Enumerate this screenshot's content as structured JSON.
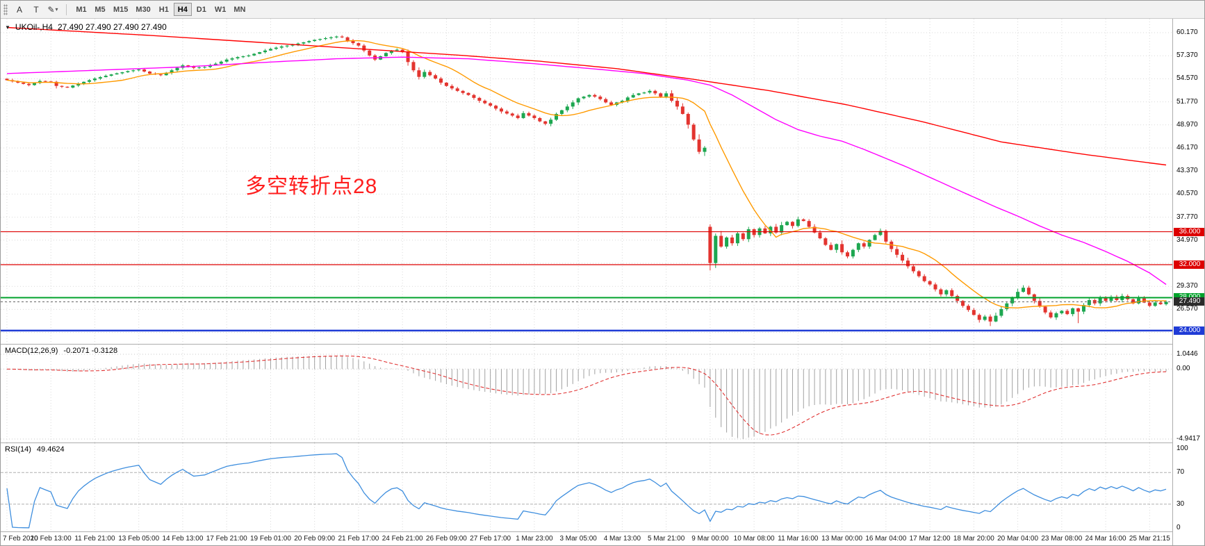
{
  "toolbar": {
    "tools": [
      {
        "name": "window-grip",
        "glyph": ""
      },
      {
        "name": "arrow-tool",
        "glyph": "A"
      },
      {
        "name": "text-tool",
        "glyph": "T"
      },
      {
        "name": "draw-tool",
        "glyph": "✎",
        "caret": "▾"
      }
    ],
    "timeframes": [
      "M1",
      "M5",
      "M15",
      "M30",
      "H1",
      "H4",
      "D1",
      "W1",
      "MN"
    ],
    "active_timeframe": "H4"
  },
  "chart_title": {
    "collapse_arrow": "▼",
    "symbol_period": "UKOil-,H4",
    "ohlc_readout": "27.490 27.490 27.490 27.490"
  },
  "annotation": {
    "text": "多空转折点28",
    "color": "#FF1E1E"
  },
  "colors": {
    "grid": "#D9D9D9",
    "candle_up": "#1DA750",
    "candle_down": "#E3342F",
    "panel_border": "#ADADAD"
  },
  "chart_data": {
    "type": "candlestick",
    "symbol": "UKOil",
    "timeframe": "H4",
    "bars": 212,
    "last_close": 27.49,
    "y_axis": {
      "top_value": 60.17,
      "step": 2.8,
      "steps": 14,
      "hidden_steps": [
        10,
        13
      ],
      "decimals": 3
    },
    "x_tick_labels": [
      "7 Feb 2020",
      "10 Feb 13:00",
      "11 Feb 21:00",
      "13 Feb 05:00",
      "14 Feb 13:00",
      "17 Feb 21:00",
      "19 Feb 01:00",
      "20 Feb 09:00",
      "21 Feb 17:00",
      "24 Feb 21:00",
      "26 Feb 09:00",
      "27 Feb 17:00",
      "1 Mar 23:00",
      "3 Mar 05:00",
      "4 Mar 13:00",
      "5 Mar 21:00",
      "9 Mar 00:00",
      "10 Mar 08:00",
      "11 Mar 16:00",
      "13 Mar 00:00",
      "16 Mar 04:00",
      "17 Mar 12:00",
      "18 Mar 20:00",
      "20 Mar 04:00",
      "23 Mar 08:00",
      "24 Mar 16:00",
      "25 Mar 21:15"
    ],
    "bars_per_tick": 8,
    "close_anchors": [
      [
        0,
        54.4
      ],
      [
        2,
        54.1
      ],
      [
        4,
        53.8
      ],
      [
        6,
        54.3
      ],
      [
        8,
        54.2
      ],
      [
        9,
        53.7
      ],
      [
        11,
        53.5
      ],
      [
        13,
        54.0
      ],
      [
        16,
        54.6
      ],
      [
        19,
        55.1
      ],
      [
        22,
        55.5
      ],
      [
        24,
        55.7
      ],
      [
        26,
        55.2
      ],
      [
        28,
        55.0
      ],
      [
        30,
        55.6
      ],
      [
        32,
        56.2
      ],
      [
        34,
        55.9
      ],
      [
        36,
        56.0
      ],
      [
        38,
        56.4
      ],
      [
        40,
        56.9
      ],
      [
        42,
        57.2
      ],
      [
        44,
        57.4
      ],
      [
        46,
        57.8
      ],
      [
        48,
        58.2
      ],
      [
        50,
        58.5
      ],
      [
        52,
        58.7
      ],
      [
        54,
        59.0
      ],
      [
        56,
        59.3
      ],
      [
        58,
        59.5
      ],
      [
        60,
        59.7
      ],
      [
        61,
        59.6
      ],
      [
        62,
        59.2
      ],
      [
        64,
        58.6
      ],
      [
        65,
        58.0
      ],
      [
        66,
        57.4
      ],
      [
        67,
        56.9
      ],
      [
        68,
        57.3
      ],
      [
        69,
        57.7
      ],
      [
        70,
        58.0
      ],
      [
        71,
        58.1
      ],
      [
        72,
        57.8
      ],
      [
        73,
        56.6
      ],
      [
        74,
        55.6
      ],
      [
        75,
        54.8
      ],
      [
        76,
        55.4
      ],
      [
        77,
        55.0
      ],
      [
        78,
        54.6
      ],
      [
        79,
        54.1
      ],
      [
        80,
        53.7
      ],
      [
        82,
        53.1
      ],
      [
        84,
        52.6
      ],
      [
        86,
        51.9
      ],
      [
        88,
        51.3
      ],
      [
        90,
        50.6
      ],
      [
        92,
        50.1
      ],
      [
        93,
        49.8
      ],
      [
        94,
        50.4
      ],
      [
        95,
        50.1
      ],
      [
        96,
        49.8
      ],
      [
        97,
        49.4
      ],
      [
        98,
        49.1
      ],
      [
        99,
        49.6
      ],
      [
        100,
        50.3
      ],
      [
        102,
        51.2
      ],
      [
        104,
        52.2
      ],
      [
        106,
        52.6
      ],
      [
        107,
        52.4
      ],
      [
        108,
        52.1
      ],
      [
        109,
        51.7
      ],
      [
        110,
        51.4
      ],
      [
        111,
        51.7
      ],
      [
        112,
        51.9
      ],
      [
        113,
        52.3
      ],
      [
        114,
        52.6
      ],
      [
        115,
        52.8
      ],
      [
        116,
        52.9
      ],
      [
        117,
        53.1
      ],
      [
        118,
        52.8
      ],
      [
        119,
        52.4
      ],
      [
        120,
        52.8
      ],
      [
        121,
        51.9
      ],
      [
        122,
        51.2
      ],
      [
        123,
        50.3
      ],
      [
        124,
        49.0
      ],
      [
        125,
        47.2
      ],
      [
        126,
        45.7
      ],
      [
        127,
        46.2
      ],
      [
        128,
        32.2
      ],
      [
        129,
        35.5
      ],
      [
        130,
        34.2
      ],
      [
        131,
        35.3
      ],
      [
        132,
        34.6
      ],
      [
        133,
        35.8
      ],
      [
        134,
        35.1
      ],
      [
        135,
        36.3
      ],
      [
        136,
        35.6
      ],
      [
        137,
        36.4
      ],
      [
        138,
        35.8
      ],
      [
        139,
        36.6
      ],
      [
        140,
        35.9
      ],
      [
        141,
        36.8
      ],
      [
        142,
        37.2
      ],
      [
        143,
        36.7
      ],
      [
        144,
        37.5
      ],
      [
        145,
        37.3
      ],
      [
        146,
        36.6
      ],
      [
        147,
        35.9
      ],
      [
        148,
        35.2
      ],
      [
        149,
        34.4
      ],
      [
        150,
        33.8
      ],
      [
        151,
        34.5
      ],
      [
        152,
        33.5
      ],
      [
        153,
        33.0
      ],
      [
        154,
        33.8
      ],
      [
        155,
        34.6
      ],
      [
        156,
        34.2
      ],
      [
        157,
        35.0
      ],
      [
        158,
        35.6
      ],
      [
        159,
        36.1
      ],
      [
        160,
        34.8
      ],
      [
        161,
        33.9
      ],
      [
        162,
        33.2
      ],
      [
        163,
        32.5
      ],
      [
        164,
        31.8
      ],
      [
        165,
        31.2
      ],
      [
        166,
        30.6
      ],
      [
        167,
        30.0
      ],
      [
        168,
        29.6
      ],
      [
        169,
        29.0
      ],
      [
        170,
        28.4
      ],
      [
        171,
        28.9
      ],
      [
        172,
        28.2
      ],
      [
        173,
        27.6
      ],
      [
        174,
        27.0
      ],
      [
        175,
        26.5
      ],
      [
        176,
        25.9
      ],
      [
        177,
        25.3
      ],
      [
        178,
        25.7
      ],
      [
        179,
        25.1
      ],
      [
        180,
        25.8
      ],
      [
        181,
        26.6
      ],
      [
        182,
        27.3
      ],
      [
        183,
        28.0
      ],
      [
        184,
        28.7
      ],
      [
        185,
        29.2
      ],
      [
        186,
        28.4
      ],
      [
        187,
        27.6
      ],
      [
        188,
        26.9
      ],
      [
        189,
        26.2
      ],
      [
        190,
        25.6
      ],
      [
        191,
        26.1
      ],
      [
        192,
        26.4
      ],
      [
        193,
        26.0
      ],
      [
        194,
        26.7
      ],
      [
        195,
        26.3
      ],
      [
        196,
        27.1
      ],
      [
        197,
        27.7
      ],
      [
        198,
        27.3
      ],
      [
        199,
        28.0
      ],
      [
        200,
        27.6
      ],
      [
        201,
        28.1
      ],
      [
        202,
        27.7
      ],
      [
        203,
        28.2
      ],
      [
        204,
        27.8
      ],
      [
        205,
        27.3
      ],
      [
        206,
        27.9
      ],
      [
        207,
        27.4
      ],
      [
        208,
        27.0
      ],
      [
        209,
        27.4
      ],
      [
        210,
        27.2
      ],
      [
        211,
        27.49
      ]
    ],
    "bar_overrides": {
      "127": {
        "low": 45.2
      },
      "128": {
        "open": 36.6,
        "high": 36.9,
        "low": 31.3
      },
      "129": {
        "low": 31.6
      },
      "179": {
        "low": 24.55
      },
      "195": {
        "low": 24.9
      }
    },
    "moving_averages": [
      {
        "name": "ma-fast",
        "color": "#FF9A00",
        "type": "sma",
        "period": 13
      },
      {
        "name": "ma-medium",
        "color": "#FF00FF",
        "type": "path",
        "path": [
          [
            0,
            55.2
          ],
          [
            16,
            55.6
          ],
          [
            32,
            56.0
          ],
          [
            48,
            56.6
          ],
          [
            60,
            57.0
          ],
          [
            72,
            57.2
          ],
          [
            84,
            57.0
          ],
          [
            96,
            56.4
          ],
          [
            108,
            55.7
          ],
          [
            116,
            55.2
          ],
          [
            124,
            54.4
          ],
          [
            128,
            53.8
          ],
          [
            132,
            52.6
          ],
          [
            136,
            51.1
          ],
          [
            140,
            49.6
          ],
          [
            144,
            48.4
          ],
          [
            148,
            47.6
          ],
          [
            152,
            47.0
          ],
          [
            156,
            46.0
          ],
          [
            160,
            44.9
          ],
          [
            164,
            43.8
          ],
          [
            168,
            42.6
          ],
          [
            172,
            41.4
          ],
          [
            176,
            40.2
          ],
          [
            180,
            39.0
          ],
          [
            184,
            37.9
          ],
          [
            188,
            36.7
          ],
          [
            192,
            35.6
          ],
          [
            196,
            34.7
          ],
          [
            200,
            33.6
          ],
          [
            204,
            32.4
          ],
          [
            208,
            31.0
          ],
          [
            211,
            29.6
          ]
        ]
      },
      {
        "name": "ma-slow",
        "color": "#FF0000",
        "type": "path",
        "path": [
          [
            0,
            60.8
          ],
          [
            27,
            59.8
          ],
          [
            55,
            58.6
          ],
          [
            83,
            57.4
          ],
          [
            97,
            56.7
          ],
          [
            111,
            55.8
          ],
          [
            125,
            54.5
          ],
          [
            139,
            53.1
          ],
          [
            153,
            51.4
          ],
          [
            167,
            49.3
          ],
          [
            181,
            46.9
          ],
          [
            196,
            45.4
          ],
          [
            211,
            44.1
          ]
        ]
      }
    ],
    "horizontal_lines": [
      {
        "price": 36.0,
        "label": "36.000",
        "color": "#DD0000",
        "width": 1.2
      },
      {
        "price": 32.0,
        "label": "32.000",
        "color": "#DD0000",
        "width": 1.2
      },
      {
        "price": 28.0,
        "label": "28.000",
        "color": "#00A22B",
        "width": 2
      },
      {
        "price": 24.0,
        "label": "24.000",
        "color": "#1F3BD6",
        "width": 2.5
      }
    ],
    "current_price": {
      "value": 27.49,
      "label": "27.490",
      "line_color": "#666666",
      "box_color": "#2B2B2B"
    },
    "macd": {
      "label": "MACD(12,26,9)",
      "values": "-0.2071 -0.3128",
      "fast": 12,
      "slow": 26,
      "signal": 9,
      "max": 1.0446,
      "min": -4.9417,
      "axis_labels": [
        "1.0446",
        "0.00",
        "-4.9417"
      ],
      "histogram_color": "#A0A0A0",
      "signal_color": "#E03131"
    },
    "rsi": {
      "label": "RSI(14)",
      "value": "49.4624",
      "period": 14,
      "levels": [
        70,
        30
      ],
      "axis_labels": [
        "100",
        "70",
        "30",
        "0"
      ],
      "line_color": "#3E8EDE"
    }
  }
}
